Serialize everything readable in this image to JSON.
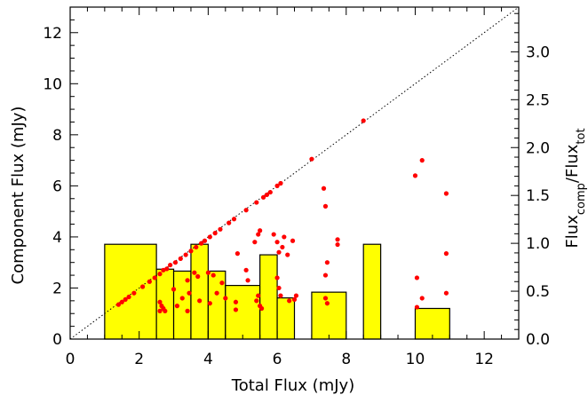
{
  "chart_data": {
    "type": "scatter",
    "xlabel": "Total Flux (mJy)",
    "ylabel": "Component Flux (mJy)",
    "y2label_main": "Flux",
    "y2label_sub1": "comp",
    "y2label_mid": "/Flux",
    "y2label_sub2": "tot",
    "xlim": [
      0,
      13
    ],
    "ylim": [
      0,
      13
    ],
    "y2lim": [
      0,
      3.467
    ],
    "grid": false,
    "x_ticks": [
      "0",
      "2",
      "4",
      "6",
      "8",
      "10",
      "12"
    ],
    "y_ticks": [
      "0",
      "2",
      "4",
      "6",
      "8",
      "10",
      "12"
    ],
    "y2_ticks": [
      "0.0",
      "0.5",
      "1.0",
      "1.5",
      "2.0",
      "2.5",
      "3.0"
    ],
    "colors": {
      "points": "#ff0000",
      "histogram_fill": "#ffff00",
      "histogram_edge": "#000000",
      "line": "#000000"
    },
    "reference_line": {
      "style": "dotted",
      "x": [
        0,
        13
      ],
      "y": [
        0,
        13
      ]
    },
    "histogram": [
      {
        "x0": 1.0,
        "x1": 2.5,
        "ratio": 0.99
      },
      {
        "x0": 2.5,
        "x1": 3.0,
        "ratio": 0.73
      },
      {
        "x0": 3.0,
        "x1": 3.5,
        "ratio": 0.71
      },
      {
        "x0": 3.5,
        "x1": 4.0,
        "ratio": 0.99
      },
      {
        "x0": 4.0,
        "x1": 4.5,
        "ratio": 0.71
      },
      {
        "x0": 4.5,
        "x1": 5.5,
        "ratio": 0.56
      },
      {
        "x0": 5.5,
        "x1": 6.0,
        "ratio": 0.88
      },
      {
        "x0": 6.0,
        "x1": 6.5,
        "ratio": 0.43
      },
      {
        "x0": 7.0,
        "x1": 8.0,
        "ratio": 0.49
      },
      {
        "x0": 8.5,
        "x1": 9.0,
        "ratio": 0.99
      },
      {
        "x0": 10.0,
        "x1": 11.0,
        "ratio": 0.32
      }
    ],
    "points": [
      {
        "x": 1.4,
        "y": 1.35
      },
      {
        "x": 1.5,
        "y": 1.45
      },
      {
        "x": 1.6,
        "y": 1.55
      },
      {
        "x": 1.7,
        "y": 1.65
      },
      {
        "x": 1.85,
        "y": 1.8
      },
      {
        "x": 2.1,
        "y": 2.05
      },
      {
        "x": 2.3,
        "y": 2.25
      },
      {
        "x": 2.45,
        "y": 2.4
      },
      {
        "x": 2.6,
        "y": 2.55
      },
      {
        "x": 2.7,
        "y": 2.7
      },
      {
        "x": 2.8,
        "y": 2.75
      },
      {
        "x": 2.9,
        "y": 2.9
      },
      {
        "x": 3.05,
        "y": 3.0
      },
      {
        "x": 3.2,
        "y": 3.15
      },
      {
        "x": 3.35,
        "y": 3.3
      },
      {
        "x": 3.5,
        "y": 3.45
      },
      {
        "x": 3.65,
        "y": 3.6
      },
      {
        "x": 3.8,
        "y": 3.75
      },
      {
        "x": 3.9,
        "y": 3.85
      },
      {
        "x": 4.05,
        "y": 4.0
      },
      {
        "x": 4.2,
        "y": 4.15
      },
      {
        "x": 4.35,
        "y": 4.3
      },
      {
        "x": 4.6,
        "y": 4.55
      },
      {
        "x": 4.75,
        "y": 4.7
      },
      {
        "x": 5.1,
        "y": 5.05
      },
      {
        "x": 5.4,
        "y": 5.35
      },
      {
        "x": 5.6,
        "y": 5.55
      },
      {
        "x": 5.7,
        "y": 5.65
      },
      {
        "x": 5.8,
        "y": 5.75
      },
      {
        "x": 6.0,
        "y": 6.0
      },
      {
        "x": 6.1,
        "y": 6.1
      },
      {
        "x": 7.0,
        "y": 7.05
      },
      {
        "x": 8.5,
        "y": 8.55
      },
      {
        "x": 2.6,
        "y": 1.45
      },
      {
        "x": 2.65,
        "y": 1.3
      },
      {
        "x": 2.7,
        "y": 1.2
      },
      {
        "x": 2.6,
        "y": 1.1
      },
      {
        "x": 2.75,
        "y": 1.1
      },
      {
        "x": 3.0,
        "y": 1.95
      },
      {
        "x": 3.1,
        "y": 1.3
      },
      {
        "x": 3.25,
        "y": 1.6
      },
      {
        "x": 3.4,
        "y": 2.3
      },
      {
        "x": 3.45,
        "y": 1.8
      },
      {
        "x": 3.4,
        "y": 1.1
      },
      {
        "x": 3.6,
        "y": 2.6
      },
      {
        "x": 3.7,
        "y": 2.45
      },
      {
        "x": 3.75,
        "y": 1.5
      },
      {
        "x": 4.0,
        "y": 2.6
      },
      {
        "x": 4.05,
        "y": 1.4
      },
      {
        "x": 4.15,
        "y": 2.5
      },
      {
        "x": 4.25,
        "y": 1.8
      },
      {
        "x": 4.4,
        "y": 2.2
      },
      {
        "x": 4.5,
        "y": 1.6
      },
      {
        "x": 4.85,
        "y": 3.35
      },
      {
        "x": 4.8,
        "y": 1.45
      },
      {
        "x": 4.8,
        "y": 1.15
      },
      {
        "x": 5.1,
        "y": 2.7
      },
      {
        "x": 5.15,
        "y": 2.3
      },
      {
        "x": 5.35,
        "y": 3.8
      },
      {
        "x": 5.45,
        "y": 4.1
      },
      {
        "x": 5.5,
        "y": 4.25
      },
      {
        "x": 5.4,
        "y": 1.5
      },
      {
        "x": 5.5,
        "y": 1.3
      },
      {
        "x": 5.55,
        "y": 1.2
      },
      {
        "x": 5.45,
        "y": 1.7
      },
      {
        "x": 5.9,
        "y": 4.1
      },
      {
        "x": 6.0,
        "y": 3.8
      },
      {
        "x": 6.05,
        "y": 3.4
      },
      {
        "x": 6.0,
        "y": 2.4
      },
      {
        "x": 6.05,
        "y": 2.0
      },
      {
        "x": 6.1,
        "y": 1.7
      },
      {
        "x": 6.2,
        "y": 4.0
      },
      {
        "x": 6.15,
        "y": 3.6
      },
      {
        "x": 6.3,
        "y": 3.3
      },
      {
        "x": 6.35,
        "y": 1.5
      },
      {
        "x": 6.45,
        "y": 3.85
      },
      {
        "x": 6.5,
        "y": 1.55
      },
      {
        "x": 6.55,
        "y": 1.7
      },
      {
        "x": 7.35,
        "y": 5.9
      },
      {
        "x": 7.4,
        "y": 5.2
      },
      {
        "x": 7.45,
        "y": 3.0
      },
      {
        "x": 7.4,
        "y": 1.6
      },
      {
        "x": 7.45,
        "y": 1.4
      },
      {
        "x": 7.4,
        "y": 2.5
      },
      {
        "x": 7.75,
        "y": 3.9
      },
      {
        "x": 7.75,
        "y": 3.7
      },
      {
        "x": 10.0,
        "y": 6.4
      },
      {
        "x": 10.2,
        "y": 7.0
      },
      {
        "x": 10.05,
        "y": 2.4
      },
      {
        "x": 10.2,
        "y": 1.6
      },
      {
        "x": 10.05,
        "y": 1.25
      },
      {
        "x": 10.9,
        "y": 5.7
      },
      {
        "x": 10.9,
        "y": 3.35
      },
      {
        "x": 10.9,
        "y": 1.8
      }
    ]
  }
}
